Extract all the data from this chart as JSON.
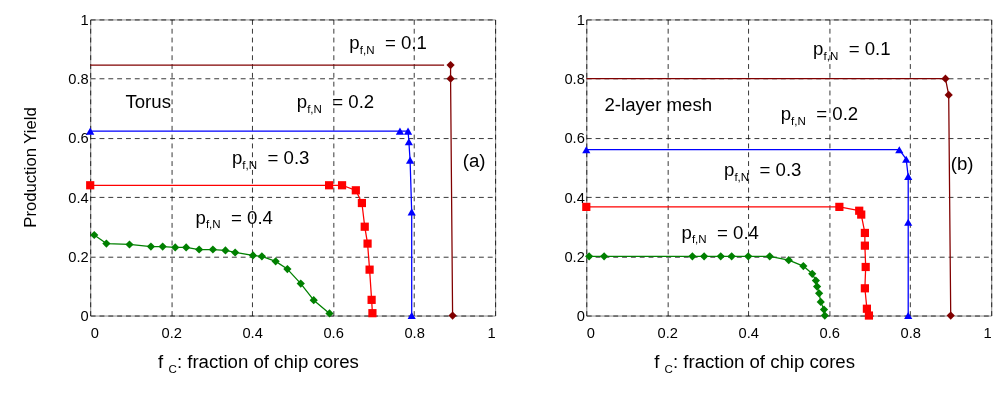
{
  "chart_data": [
    {
      "type": "line",
      "ylabel": "Production Yield",
      "xlabel": "f$_{C}$: fraction of chip cores",
      "xlim": [
        0,
        1
      ],
      "ylim": [
        0,
        1
      ],
      "xticks": [
        0,
        0.2,
        0.4,
        0.6,
        0.8,
        1
      ],
      "yticks": [
        0,
        0.2,
        0.4,
        0.6,
        0.8,
        1
      ],
      "grid": true,
      "line_style": "solid",
      "series": [
        {
          "color": "#800000",
          "marker": "diamond",
          "x": [
            0.89,
            0.89,
            0.895
          ],
          "values": [
            0.846,
            0.8,
            0
          ]
        },
        {
          "color": "#800000",
          "marker": "none",
          "x": [
            0,
            0.874
          ],
          "values": [
            0.846,
            0.846
          ]
        },
        {
          "color": "#0000ff",
          "marker": "triangle",
          "x": [
            0,
            0.765,
            0.785,
            0.787,
            0.79,
            0.794,
            0.794
          ],
          "values": [
            0.623,
            0.623,
            0.623,
            0.587,
            0.525,
            0.35,
            0
          ]
        },
        {
          "color": "#ff0000",
          "marker": "square",
          "x": [
            0,
            0.59,
            0.622,
            0.656,
            0.671,
            0.678,
            0.685,
            0.69,
            0.695,
            0.697
          ],
          "values": [
            0.44,
            0.44,
            0.44,
            0.423,
            0.38,
            0.3,
            0.243,
            0.155,
            0.053,
            0.008
          ]
        },
        {
          "color": "#008000",
          "marker": "diamond",
          "x": [
            0.01,
            0.04,
            0.097,
            0.15,
            0.179,
            0.21,
            0.237,
            0.269,
            0.303,
            0.334,
            0.358,
            0.402,
            0.424,
            0.458,
            0.487,
            0.52,
            0.552,
            0.591
          ],
          "values": [
            0.272,
            0.243,
            0.24,
            0.233,
            0.233,
            0.23,
            0.23,
            0.223,
            0.223,
            0.22,
            0.213,
            0.203,
            0.2,
            0.183,
            0.157,
            0.108,
            0.052,
            0.007
          ]
        }
      ],
      "annotations": [
        "p$_{f,N}$ = 0.1",
        "p$_{f,N}$ = 0.2",
        "p$_{f,N}$ = 0.3",
        "p$_{f,N}$ = 0.4",
        "Torus",
        "(a)"
      ]
    },
    {
      "type": "line",
      "xlabel": "f$_{C}$: fraction of chip cores",
      "xlim": [
        0,
        1
      ],
      "ylim": [
        0,
        1
      ],
      "xticks": [
        0,
        0.2,
        0.4,
        0.6,
        0.8,
        1
      ],
      "yticks": [
        0,
        0.2,
        0.4,
        0.6,
        0.8,
        1
      ],
      "grid": true,
      "line_style": "solid",
      "series": [
        {
          "color": "#800000",
          "marker": "diamond",
          "x": [
            0.887,
            0.895,
            0.9
          ],
          "values": [
            0.8,
            0.745,
            0
          ]
        },
        {
          "color": "#800000",
          "marker": "none",
          "x": [
            0,
            0.887
          ],
          "values": [
            0.8,
            0.8
          ]
        },
        {
          "color": "#0000ff",
          "marker": "triangle",
          "x": [
            0,
            0.773,
            0.79,
            0.795,
            0.795,
            0.795
          ],
          "values": [
            0.56,
            0.56,
            0.528,
            0.47,
            0.315,
            0
          ]
        },
        {
          "color": "#ff0000",
          "marker": "square",
          "x": [
            0,
            0.625,
            0.674,
            0.679,
            0.688,
            0.688,
            0.69,
            0.688,
            0.693,
            0.698
          ],
          "values": [
            0.367,
            0.367,
            0.354,
            0.341,
            0.279,
            0.236,
            0.164,
            0.092,
            0.023,
            0
          ]
        },
        {
          "color": "#008000",
          "marker": "diamond",
          "x": [
            0.007,
            0.044,
            0.262,
            0.291,
            0.332,
            0.359,
            0.4,
            0.453,
            0.5,
            0.536,
            0.558,
            0.567,
            0.57,
            0.575,
            0.579,
            0.587,
            0.589
          ],
          "values": [
            0.2,
            0.2,
            0.2,
            0.2,
            0.2,
            0.2,
            0.2,
            0.2,
            0.187,
            0.167,
            0.141,
            0.118,
            0.098,
            0.075,
            0.046,
            0.02,
            0
          ]
        }
      ],
      "annotations": [
        "p$_{f,N}$ = 0.1",
        "p$_{f,N}$ = 0.2",
        "p$_{f,N}$ = 0.3",
        "p$_{f,N}$ = 0.4",
        "2-layer mesh",
        "(b)"
      ]
    }
  ]
}
